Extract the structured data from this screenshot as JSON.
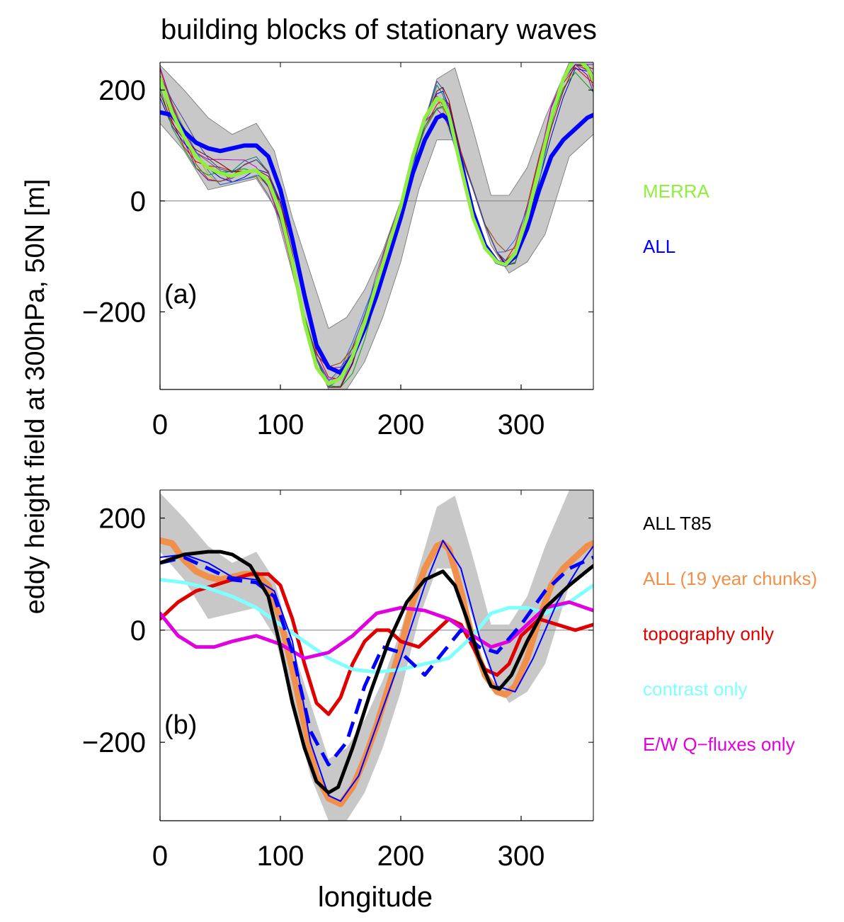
{
  "figure": {
    "title": "building blocks of stationary waves",
    "ylabel": "eddy height field at 300hPa, 50N [m]",
    "xlabel": "longitude"
  },
  "chart_data": [
    {
      "type": "line",
      "panel_label": "(a)",
      "xlim": [
        0,
        360
      ],
      "ylim": [
        -340,
        250
      ],
      "xticks": [
        0,
        100,
        200,
        300
      ],
      "yticks": [
        -200,
        0,
        200
      ],
      "xtick_labels": [
        "0",
        "100",
        "200",
        "300"
      ],
      "ytick_labels": [
        "−200",
        "0",
        "200"
      ],
      "grid": false,
      "legend_position": "right",
      "zero_line": true,
      "envelope": {
        "color": "#c8c8c8",
        "x": [
          0,
          20,
          40,
          60,
          80,
          95,
          110,
          125,
          140,
          155,
          170,
          185,
          200,
          215,
          230,
          245,
          260,
          275,
          290,
          305,
          320,
          340,
          360
        ],
        "upper": [
          245,
          200,
          150,
          120,
          140,
          90,
          -30,
          -130,
          -230,
          -210,
          -160,
          -90,
          0,
          110,
          220,
          240,
          130,
          10,
          10,
          60,
          150,
          250,
          250
        ],
        "lower": [
          140,
          90,
          20,
          30,
          40,
          -10,
          -130,
          -260,
          -340,
          -340,
          -290,
          -210,
          -110,
          20,
          110,
          110,
          20,
          -80,
          -130,
          -110,
          -60,
          80,
          120
        ]
      },
      "ensemble_colors": [
        "#b8b000",
        "#8000c0",
        "#d00000",
        "#0000d0",
        "#008080",
        "#c000c0",
        "#606060",
        "#2060ff",
        "#a04000",
        "#00a000",
        "#800000",
        "#4040a0"
      ],
      "series": [
        {
          "name": "MERRA",
          "color": "#90ee40",
          "x": [
            0,
            10,
            20,
            30,
            40,
            50,
            60,
            70,
            80,
            90,
            100,
            110,
            120,
            130,
            140,
            150,
            160,
            170,
            180,
            190,
            200,
            210,
            220,
            230,
            235,
            240,
            250,
            260,
            270,
            280,
            287,
            295,
            305,
            315,
            325,
            335,
            345,
            355,
            360
          ],
          "y": [
            220,
            160,
            115,
            80,
            60,
            50,
            45,
            52,
            55,
            35,
            -20,
            -110,
            -220,
            -300,
            -330,
            -320,
            -280,
            -220,
            -150,
            -80,
            -10,
            80,
            150,
            185,
            180,
            155,
            60,
            -30,
            -85,
            -110,
            -115,
            -95,
            -30,
            60,
            150,
            220,
            260,
            240,
            220
          ]
        },
        {
          "name": "ALL",
          "color": "#0000ff",
          "x": [
            0,
            10,
            20,
            30,
            40,
            50,
            60,
            70,
            80,
            90,
            100,
            110,
            120,
            130,
            140,
            150,
            160,
            170,
            180,
            190,
            200,
            210,
            220,
            230,
            235,
            240,
            250,
            260,
            270,
            280,
            287,
            295,
            305,
            315,
            325,
            335,
            345,
            355,
            360
          ],
          "y": [
            160,
            155,
            125,
            105,
            95,
            90,
            95,
            100,
            100,
            80,
            20,
            -70,
            -170,
            -260,
            -300,
            -310,
            -280,
            -230,
            -170,
            -100,
            -30,
            50,
            110,
            150,
            155,
            145,
            70,
            -20,
            -80,
            -110,
            -115,
            -100,
            -50,
            20,
            80,
            110,
            130,
            150,
            155
          ]
        }
      ]
    },
    {
      "type": "line",
      "panel_label": "(b)",
      "xlim": [
        0,
        360
      ],
      "ylim": [
        -340,
        250
      ],
      "xticks": [
        0,
        100,
        200,
        300
      ],
      "yticks": [
        -200,
        0,
        200
      ],
      "xtick_labels": [
        "0",
        "100",
        "200",
        "300"
      ],
      "ytick_labels": [
        "−200",
        "0",
        "200"
      ],
      "grid": false,
      "legend_position": "right",
      "zero_line": true,
      "envelope": {
        "color": "#c8c8c8",
        "x": [
          0,
          20,
          40,
          60,
          80,
          95,
          110,
          125,
          140,
          155,
          170,
          185,
          200,
          215,
          230,
          245,
          260,
          275,
          290,
          305,
          320,
          340,
          360
        ],
        "upper": [
          245,
          200,
          150,
          120,
          140,
          90,
          -30,
          -130,
          -230,
          -210,
          -160,
          -90,
          0,
          110,
          220,
          240,
          130,
          10,
          10,
          60,
          150,
          250,
          250
        ],
        "lower": [
          140,
          90,
          20,
          30,
          40,
          -10,
          -130,
          -260,
          -340,
          -340,
          -290,
          -210,
          -110,
          20,
          110,
          110,
          20,
          -80,
          -130,
          -110,
          -60,
          80,
          120
        ]
      },
      "series": [
        {
          "name": "ALL (19 year chunks)",
          "color": "#f0904a",
          "x": [
            0,
            10,
            20,
            30,
            40,
            50,
            60,
            70,
            80,
            90,
            100,
            110,
            120,
            130,
            140,
            150,
            160,
            170,
            180,
            190,
            200,
            210,
            220,
            230,
            235,
            240,
            250,
            260,
            270,
            280,
            287,
            295,
            305,
            315,
            325,
            335,
            345,
            355,
            360
          ],
          "y": [
            160,
            155,
            125,
            105,
            95,
            90,
            95,
            100,
            100,
            80,
            20,
            -70,
            -170,
            -260,
            -300,
            -310,
            -280,
            -230,
            -170,
            -100,
            -30,
            50,
            110,
            150,
            155,
            145,
            70,
            -20,
            -80,
            -110,
            -115,
            -100,
            -50,
            20,
            80,
            110,
            130,
            150,
            155
          ]
        },
        {
          "name": "",
          "color": "#0000ff",
          "dashed": false,
          "x": [
            0,
            20,
            40,
            60,
            80,
            95,
            110,
            125,
            140,
            150,
            165,
            180,
            200,
            220,
            235,
            250,
            265,
            280,
            295,
            310,
            330,
            350,
            360
          ],
          "y": [
            130,
            135,
            120,
            95,
            90,
            70,
            -20,
            -200,
            -295,
            -305,
            -260,
            -170,
            -50,
            80,
            160,
            110,
            -10,
            -100,
            -110,
            -50,
            50,
            120,
            150
          ]
        },
        {
          "name": "",
          "color": "#0000ff",
          "dashed": true,
          "x": [
            0,
            20,
            40,
            60,
            80,
            95,
            110,
            125,
            140,
            155,
            170,
            185,
            200,
            220,
            235,
            250,
            265,
            280,
            300,
            320,
            340,
            360
          ],
          "y": [
            120,
            130,
            110,
            90,
            85,
            60,
            -40,
            -180,
            -240,
            -200,
            -100,
            -30,
            -40,
            -80,
            -40,
            0,
            -30,
            -40,
            10,
            70,
            110,
            130
          ]
        },
        {
          "name": "ALL T85",
          "color": "#000000",
          "x": [
            0,
            20,
            40,
            50,
            60,
            75,
            90,
            100,
            110,
            120,
            130,
            140,
            148,
            160,
            175,
            190,
            205,
            220,
            235,
            245,
            255,
            265,
            275,
            282,
            292,
            305,
            320,
            340,
            360
          ],
          "y": [
            120,
            135,
            140,
            140,
            135,
            115,
            60,
            -30,
            -130,
            -210,
            -270,
            -290,
            -280,
            -210,
            -110,
            -20,
            50,
            90,
            105,
            80,
            20,
            -50,
            -100,
            -105,
            -80,
            -20,
            40,
            80,
            115
          ]
        },
        {
          "name": "topography only",
          "color": "#e00000",
          "x": [
            0,
            15,
            30,
            45,
            60,
            75,
            90,
            100,
            110,
            120,
            130,
            140,
            150,
            160,
            170,
            180,
            190,
            200,
            215,
            230,
            240,
            250,
            260,
            270,
            280,
            290,
            300,
            315,
            330,
            345,
            360
          ],
          "y": [
            20,
            50,
            70,
            80,
            90,
            100,
            100,
            80,
            20,
            -60,
            -130,
            -150,
            -120,
            -60,
            -20,
            0,
            0,
            -20,
            -30,
            0,
            20,
            10,
            -30,
            -70,
            -80,
            -60,
            -10,
            20,
            10,
            0,
            10
          ]
        },
        {
          "name": "contrast only",
          "color": "#80ffff",
          "x": [
            0,
            20,
            40,
            60,
            80,
            100,
            120,
            140,
            160,
            180,
            200,
            220,
            240,
            260,
            275,
            290,
            305,
            320,
            340,
            360
          ],
          "y": [
            90,
            85,
            75,
            60,
            40,
            10,
            -20,
            -50,
            -70,
            -75,
            -70,
            -60,
            -50,
            -10,
            30,
            40,
            40,
            30,
            50,
            80
          ]
        },
        {
          "name": "E/W Q−fluxes only",
          "color": "#e000e0",
          "x": [
            0,
            15,
            30,
            45,
            60,
            80,
            100,
            120,
            140,
            160,
            180,
            200,
            220,
            240,
            260,
            275,
            290,
            305,
            320,
            340,
            360
          ],
          "y": [
            30,
            -10,
            -30,
            -30,
            -20,
            -10,
            -25,
            -50,
            -40,
            -10,
            30,
            40,
            35,
            20,
            -10,
            -30,
            -20,
            10,
            40,
            50,
            35
          ]
        }
      ]
    }
  ],
  "legend_a": [
    "MERRA",
    "ALL"
  ],
  "legend_b": [
    "ALL T85",
    "ALL (19 year chunks)",
    "topography only",
    "contrast only",
    "E/W Q−fluxes only"
  ]
}
